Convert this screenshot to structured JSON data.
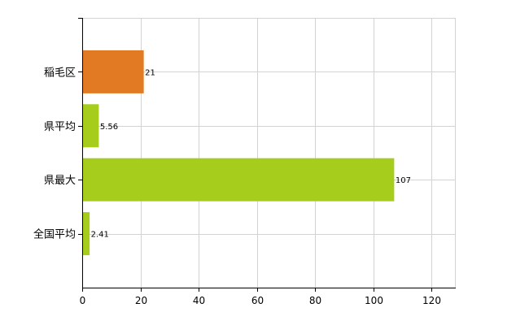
{
  "chart_data": {
    "type": "bar",
    "orientation": "horizontal",
    "title": "",
    "xlabel": "",
    "ylabel": "",
    "categories": [
      "稲毛区",
      "県平均",
      "県最大",
      "全国平均"
    ],
    "values": [
      21,
      5.56,
      107,
      2.41
    ],
    "value_labels": [
      "21",
      "5.56",
      "107",
      "2.41"
    ],
    "colors": [
      "#e17a22",
      "#a6cc1c",
      "#a6cc1c",
      "#a6cc1c"
    ],
    "xlim": [
      0,
      128
    ],
    "xticks": [
      0,
      20,
      40,
      60,
      80,
      100,
      120
    ],
    "xtick_labels": [
      "0",
      "20",
      "40",
      "60",
      "80",
      "100",
      "120"
    ],
    "grid": true,
    "legend": "none"
  }
}
